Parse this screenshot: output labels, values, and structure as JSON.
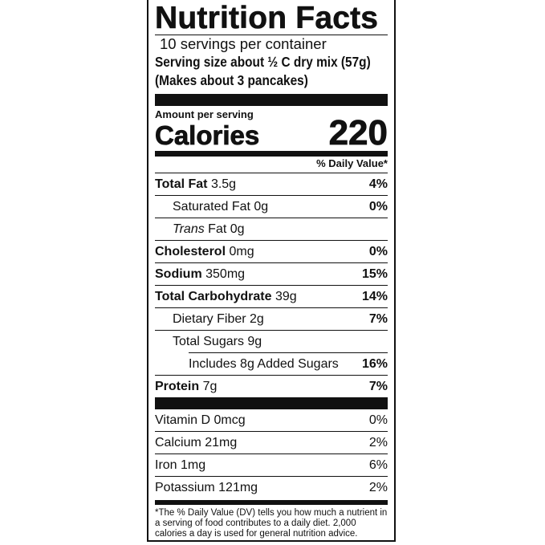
{
  "title": "Nutrition Facts",
  "servings_per_container": "10 servings per container",
  "serving_size": "Serving size about ½ C dry mix (57g)",
  "makes": "(Makes about 3 pancakes)",
  "amount_per_serving": "Amount per serving",
  "calories_label": "Calories",
  "calories_value": "220",
  "daily_value_header": "% Daily Value*",
  "nutrients": [
    {
      "name": "Total Fat",
      "amount": "3.5g",
      "dv": "4%"
    },
    {
      "name": "Saturated Fat",
      "amount": "0g",
      "dv": "0%"
    },
    {
      "name": "Trans",
      "name_rest": "Fat",
      "amount": "0g",
      "dv": ""
    },
    {
      "name": "Cholesterol",
      "amount": "0mg",
      "dv": "0%"
    },
    {
      "name": "Sodium",
      "amount": "350mg",
      "dv": "15%"
    },
    {
      "name": "Total Carbohydrate",
      "amount": "39g",
      "dv": "14%"
    },
    {
      "name": "Dietary Fiber",
      "amount": "2g",
      "dv": "7%"
    },
    {
      "name": "Total Sugars",
      "amount": "9g",
      "dv": ""
    },
    {
      "name": "Includes 8g Added Sugars",
      "amount": "",
      "dv": "16%"
    },
    {
      "name": "Protein",
      "amount": "7g",
      "dv": "7%"
    }
  ],
  "vitamins": [
    {
      "name": "Vitamin D",
      "amount": "0mcg",
      "dv": "0%"
    },
    {
      "name": "Calcium",
      "amount": "21mg",
      "dv": "2%"
    },
    {
      "name": "Iron",
      "amount": "1mg",
      "dv": "6%"
    },
    {
      "name": "Potassium",
      "amount": "121mg",
      "dv": "2%"
    }
  ],
  "footnote": "*The % Daily Value (DV) tells you how much a nutrient in a serving of food contributes to a daily diet. 2,000 calories a day is used for general nutrition advice."
}
